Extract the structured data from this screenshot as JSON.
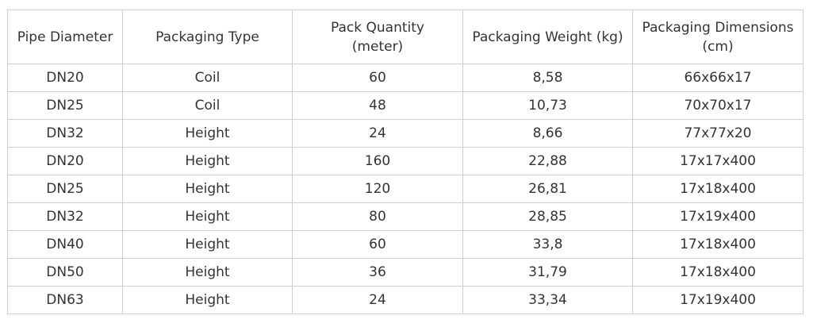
{
  "table": {
    "headers": [
      "Pipe Diameter",
      "Packaging Type",
      "Pack Quantity\n(meter)",
      "Packaging Weight (kg)",
      "Packaging Dimensions\n(cm)"
    ],
    "rows": [
      [
        "DN20",
        "Coil",
        "60",
        "8,58",
        "66x66x17"
      ],
      [
        "DN25",
        "Coil",
        "48",
        "10,73",
        "70x70x17"
      ],
      [
        "DN32",
        "Height",
        "24",
        "8,66",
        "77x77x20"
      ],
      [
        "DN20",
        "Height",
        "160",
        "22,88",
        "17x17x400"
      ],
      [
        "DN25",
        "Height",
        "120",
        "26,81",
        "17x18x400"
      ],
      [
        "DN32",
        "Height",
        "80",
        "28,85",
        "17x19x400"
      ],
      [
        "DN40",
        "Height",
        "60",
        "33,8",
        "17x18x400"
      ],
      [
        "DN50",
        "Height",
        "36",
        "31,79",
        "17x18x400"
      ],
      [
        "DN63",
        "Height",
        "24",
        "33,34",
        "17x19x400"
      ]
    ]
  }
}
